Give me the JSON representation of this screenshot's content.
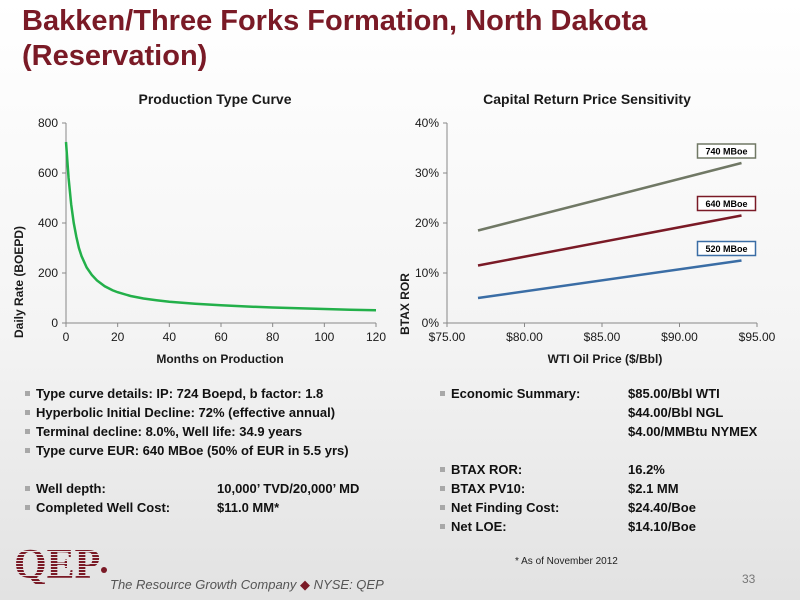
{
  "title": "Bakken/Three Forks Formation, North Dakota (Reservation)",
  "chart_data": [
    {
      "type": "line",
      "title": "Production Type Curve",
      "xlabel": "Months on Production",
      "ylabel": "Daily Rate (BOEPD)",
      "xlim": [
        0,
        120
      ],
      "ylim": [
        0,
        800
      ],
      "xticks": [
        "0",
        "20",
        "40",
        "60",
        "80",
        "100",
        "120"
      ],
      "yticks": [
        "0",
        "200",
        "400",
        "600",
        "800"
      ],
      "grid": false,
      "series": [
        {
          "color": "#23b04a",
          "x": [
            0,
            1,
            2,
            3,
            4,
            5,
            6,
            8,
            10,
            12,
            15,
            18,
            20,
            25,
            30,
            35,
            40,
            50,
            60,
            70,
            80,
            90,
            100,
            110,
            120
          ],
          "y": [
            724,
            580,
            475,
            400,
            345,
            300,
            268,
            222,
            192,
            170,
            147,
            131,
            123,
            108,
            98,
            91,
            85,
            77,
            71,
            66,
            62,
            59,
            56,
            53,
            51
          ]
        }
      ]
    },
    {
      "type": "line",
      "title": "Capital Return Price Sensitivity",
      "xlabel": "WTI Oil Price ($/Bbl)",
      "ylabel": "BTAX ROR",
      "xlim": [
        75,
        95
      ],
      "ylim": [
        0,
        40
      ],
      "xticks": [
        "$75.00",
        "$80.00",
        "$85.00",
        "$90.00",
        "$95.00"
      ],
      "yticks": [
        "0%",
        "10%",
        "20%",
        "30%",
        "40%"
      ],
      "grid": false,
      "series": [
        {
          "name": "740 MBoe",
          "color": "#707865",
          "x": [
            77,
            94
          ],
          "y": [
            18.5,
            32
          ]
        },
        {
          "name": "640 MBoe",
          "color": "#7a1a26",
          "x": [
            77,
            94
          ],
          "y": [
            11.5,
            21.5
          ]
        },
        {
          "name": "520 MBoe",
          "color": "#3a6da5",
          "x": [
            77,
            94
          ],
          "y": [
            5,
            12.5
          ]
        }
      ]
    }
  ],
  "left_bullets": [
    {
      "text": "Type curve details: IP:  724 Boepd, b factor:  1.8",
      "value": ""
    },
    {
      "text": "Hyperbolic Initial Decline:  72% (effective annual)",
      "value": ""
    },
    {
      "text": "Terminal decline:  8.0%, Well life:  34.9 years",
      "value": ""
    },
    {
      "text": "Type curve EUR:  640 MBoe (50% of EUR in 5.5 yrs)",
      "value": ""
    },
    {
      "text": "Well depth:",
      "value": "10,000’ TVD/20,000’ MD"
    },
    {
      "text": "Completed Well Cost:",
      "value": "$11.0 MM*"
    }
  ],
  "right_bullets": {
    "economic_label": "Economic Summary:",
    "economic_values": [
      "$85.00/Bbl WTI",
      "$44.00/Bbl NGL",
      "$4.00/MMBtu NYMEX"
    ],
    "items": [
      {
        "text": "BTAX ROR:",
        "value": "16.2%"
      },
      {
        "text": "BTAX PV10:",
        "value": "$2.1 MM"
      },
      {
        "text": "Net Finding Cost:",
        "value": "$24.40/Boe"
      },
      {
        "text": "Net LOE:",
        "value": "$14.10/Boe"
      }
    ]
  },
  "footnote": "* As of November 2012",
  "page_number": "33",
  "footer": {
    "logo_text": "QEP",
    "tagline": "The Resource Growth Company",
    "separator": "◆",
    "ticker": "NYSE: QEP"
  }
}
